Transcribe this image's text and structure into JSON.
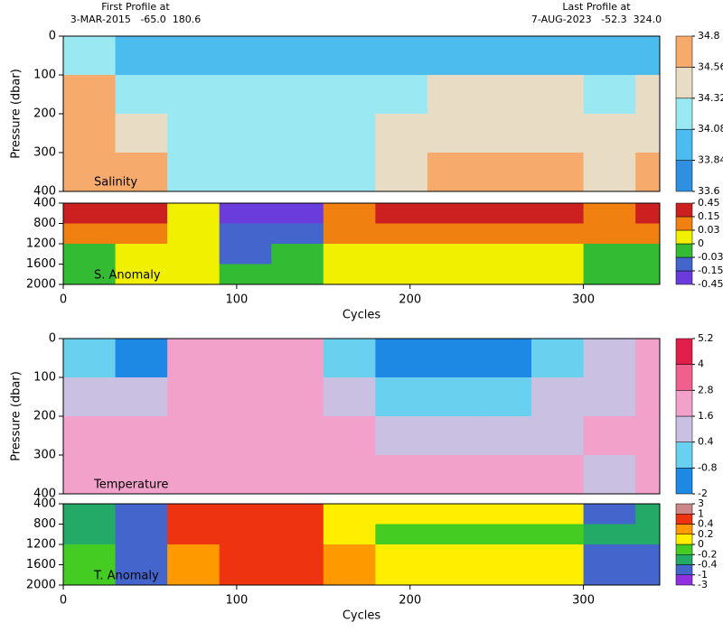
{
  "header": {
    "first_title": "First Profile at",
    "first_info": "3-MAR-2015   -65.0  180.6",
    "last_title": "Last Profile at",
    "last_info": "7-AUG-2023   -52.3  324.0"
  },
  "chart_data": [
    {
      "type": "heatmap",
      "label": "Salinity",
      "ylabel": "Pressure (dbar)",
      "xlim": [
        0,
        344
      ],
      "ylim": [
        0,
        400
      ],
      "yticks": [
        0,
        100,
        200,
        300,
        400
      ],
      "x_edges": [
        0,
        30,
        60,
        90,
        120,
        150,
        180,
        210,
        240,
        270,
        300,
        330,
        344
      ],
      "y_edges": [
        0,
        100,
        200,
        300,
        400
      ],
      "values": [
        [
          34.2,
          34.0,
          33.9,
          33.9,
          33.9,
          33.9,
          34.0,
          34.0,
          34.0,
          34.0,
          33.9,
          34.0
        ],
        [
          34.6,
          34.3,
          34.1,
          34.1,
          34.1,
          34.1,
          34.3,
          34.35,
          34.35,
          34.35,
          34.2,
          34.35
        ],
        [
          34.65,
          34.5,
          34.2,
          34.15,
          34.15,
          34.2,
          34.45,
          34.5,
          34.5,
          34.5,
          34.35,
          34.5
        ],
        [
          34.7,
          34.6,
          34.3,
          34.2,
          34.2,
          34.25,
          34.55,
          34.6,
          34.6,
          34.6,
          34.5,
          34.6
        ]
      ],
      "colorbar": {
        "levels": [
          33.6,
          33.84,
          34.08,
          34.32,
          34.56,
          34.8
        ],
        "colors": [
          "#2f8fe0",
          "#4cbcef",
          "#9ae9f2",
          "#e8dcc4",
          "#f6aa6c"
        ]
      }
    },
    {
      "type": "heatmap",
      "label": "S. Anomaly",
      "xlabel": "Cycles",
      "xlim": [
        0,
        344
      ],
      "ylim": [
        400,
        2000
      ],
      "yticks": [
        400,
        800,
        1200,
        1600,
        2000
      ],
      "xticks": [
        0,
        100,
        200,
        300
      ],
      "x_edges": [
        0,
        30,
        60,
        90,
        120,
        150,
        180,
        210,
        240,
        270,
        300,
        330,
        344
      ],
      "y_edges": [
        400,
        800,
        1200,
        1600,
        2000
      ],
      "values": [
        [
          0.2,
          0.2,
          0.02,
          -0.2,
          -0.2,
          0.1,
          0.2,
          0.2,
          0.2,
          0.2,
          0.1,
          0.2
        ],
        [
          0.1,
          0.05,
          0.01,
          -0.1,
          -0.1,
          0.05,
          0.1,
          0.1,
          0.1,
          0.1,
          0.05,
          0.1
        ],
        [
          -0.01,
          0.01,
          0.01,
          -0.05,
          -0.02,
          0.02,
          0.01,
          0.01,
          0.01,
          0.01,
          -0.01,
          -0.01
        ],
        [
          -0.01,
          0.01,
          0.01,
          -0.01,
          -0.01,
          0.02,
          0.01,
          0.01,
          0.01,
          0.01,
          -0.01,
          -0.01
        ]
      ],
      "colorbar": {
        "levels": [
          -0.45,
          -0.15,
          -0.03,
          0,
          0.03,
          0.15,
          0.45
        ],
        "colors": [
          "#6a3cdc",
          "#4466cc",
          "#33bb33",
          "#f0f000",
          "#f08010",
          "#cc2020"
        ]
      }
    },
    {
      "type": "heatmap",
      "label": "Temperature",
      "ylabel": "Pressure (dbar)",
      "xlim": [
        0,
        344
      ],
      "ylim": [
        0,
        400
      ],
      "yticks": [
        0,
        100,
        200,
        300,
        400
      ],
      "x_edges": [
        0,
        30,
        60,
        90,
        120,
        150,
        180,
        210,
        240,
        270,
        300,
        330,
        344
      ],
      "y_edges": [
        0,
        100,
        200,
        300,
        400
      ],
      "values": [
        [
          -0.5,
          -1,
          2.0,
          2.5,
          2.5,
          0,
          -1,
          -1,
          -1,
          -0.5,
          1,
          2.2
        ],
        [
          1.0,
          0.5,
          2.2,
          2.3,
          2.3,
          1.0,
          0,
          0,
          0,
          0.5,
          1.5,
          2.0
        ],
        [
          1.8,
          1.8,
          2.0,
          2.0,
          2.0,
          1.8,
          1.5,
          1.5,
          1.5,
          1.5,
          1.7,
          1.8
        ],
        [
          2.0,
          2.0,
          2.0,
          2.0,
          2.0,
          2.0,
          1.8,
          1.8,
          1.8,
          1.8,
          1.5,
          2.0
        ]
      ],
      "colorbar": {
        "levels": [
          -2,
          -0.8,
          0.4,
          1.6,
          2.8,
          4,
          5.2
        ],
        "colors": [
          "#1e88e5",
          "#6ad0f0",
          "#c9c0e2",
          "#f2a2ca",
          "#f0608f",
          "#e0204a"
        ]
      }
    },
    {
      "type": "heatmap",
      "label": "T. Anomaly",
      "xlabel": "Cycles",
      "xlim": [
        0,
        344
      ],
      "ylim": [
        400,
        2000
      ],
      "yticks": [
        400,
        800,
        1200,
        1600,
        2000
      ],
      "xticks": [
        0,
        100,
        200,
        300
      ],
      "x_edges": [
        0,
        30,
        60,
        90,
        120,
        150,
        180,
        210,
        240,
        270,
        300,
        330,
        344
      ],
      "y_edges": [
        400,
        800,
        1200,
        1600,
        2000
      ],
      "values": [
        [
          -0.3,
          -0.6,
          0.6,
          0.6,
          0.6,
          0.1,
          0.1,
          0.1,
          0.1,
          0.1,
          -0.6,
          -0.3
        ],
        [
          -0.3,
          -0.6,
          0.5,
          0.6,
          0.6,
          0.15,
          -0.1,
          -0.1,
          -0.1,
          -0.1,
          -0.3,
          -0.3
        ],
        [
          -0.1,
          -0.5,
          0.3,
          0.5,
          0.5,
          0.3,
          0.05,
          0.05,
          0.05,
          0.05,
          -0.5,
          -0.5
        ],
        [
          -0.1,
          -0.5,
          0.3,
          0.5,
          0.5,
          0.3,
          0.05,
          0.05,
          0.05,
          0.05,
          -0.5,
          -0.5
        ]
      ],
      "colorbar": {
        "levels": [
          -3,
          -1,
          -0.4,
          -0.2,
          0,
          0.2,
          0.4,
          1,
          3
        ],
        "colors": [
          "#9030e0",
          "#4466cc",
          "#22aa66",
          "#44cc22",
          "#ffee00",
          "#ff9900",
          "#ee3311",
          "#cc8888"
        ]
      }
    }
  ]
}
